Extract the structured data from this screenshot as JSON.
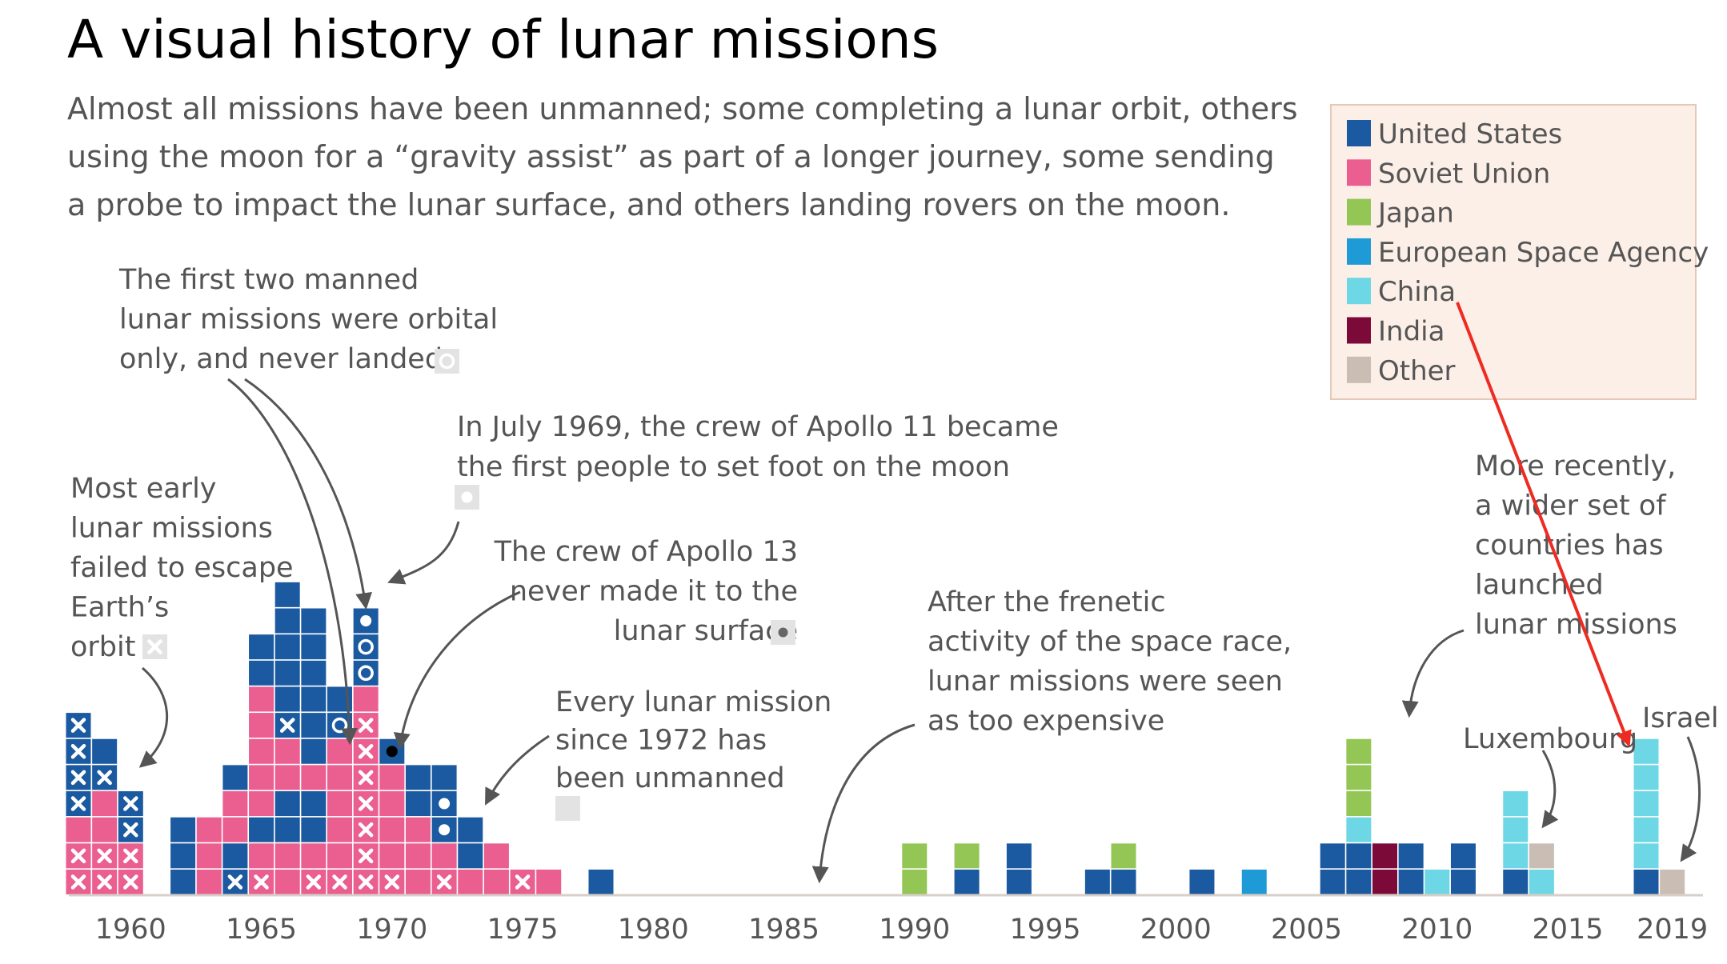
{
  "colors": {
    "United States": "#1b5aa0",
    "Soviet Union": "#ea5e90",
    "Japan": "#93c655",
    "European Space Agency": "#1e9ad7",
    "China": "#6dd7e5",
    "India": "#7c0a39",
    "Other": "#c9bdb4",
    "legend_bg": "#fcefe7",
    "axis": "#d8cfc8",
    "arrow": "#555555",
    "highlight": "#ee2b23"
  },
  "chart_data": {
    "type": "stacked-square-waffle",
    "title": "A visual history of lunar missions",
    "subtitle": [
      "Almost all missions have been unmanned; some completing a lunar orbit, others",
      "using the moon for a “gravity assist” as part of a longer journey, some sending",
      "a probe to impact the lunar surface, and others landing rovers on the moon."
    ],
    "x_ticks": [
      "1960",
      "1965",
      "1970",
      "1975",
      "1980",
      "1985",
      "1990",
      "1995",
      "2000",
      "2005",
      "2010",
      "2015",
      "2019"
    ],
    "legend": [
      "United States",
      "Soviet Union",
      "Japan",
      "European Space Agency",
      "China",
      "India",
      "Other"
    ],
    "columns": [
      {
        "year": 1958,
        "stack": [
          "Soviet Union:fail",
          "Soviet Union:fail",
          "Soviet Union",
          "United States:fail",
          "United States:fail",
          "United States:fail",
          "United States:fail"
        ]
      },
      {
        "year": 1959,
        "stack": [
          "Soviet Union:fail",
          "Soviet Union:fail",
          "Soviet Union",
          "Soviet Union",
          "United States:fail",
          "United States"
        ]
      },
      {
        "year": 1960,
        "stack": [
          "Soviet Union:fail",
          "Soviet Union:fail",
          "United States:fail",
          "United States:fail"
        ]
      },
      {
        "year": 1962,
        "stack": [
          "United States",
          "United States",
          "United States"
        ]
      },
      {
        "year": 1963,
        "stack": [
          "Soviet Union",
          "Soviet Union",
          "Soviet Union"
        ]
      },
      {
        "year": 1964,
        "stack": [
          "United States:fail",
          "United States",
          "Soviet Union",
          "Soviet Union",
          "United States"
        ]
      },
      {
        "year": 1965,
        "stack": [
          "Soviet Union:fail",
          "Soviet Union",
          "United States",
          "Soviet Union",
          "Soviet Union",
          "Soviet Union",
          "Soviet Union",
          "Soviet Union",
          "United States",
          "United States"
        ]
      },
      {
        "year": 1966,
        "stack": [
          "Soviet Union",
          "Soviet Union",
          "United States",
          "United States",
          "Soviet Union",
          "Soviet Union",
          "United States:fail",
          "United States",
          "United States",
          "United States",
          "United States",
          "United States"
        ]
      },
      {
        "year": 1967,
        "stack": [
          "Soviet Union:fail",
          "Soviet Union",
          "United States",
          "United States",
          "Soviet Union",
          "United States",
          "United States",
          "United States",
          "United States",
          "United States",
          "United States"
        ]
      },
      {
        "year": 1968,
        "stack": [
          "Soviet Union:fail",
          "Soviet Union",
          "Soviet Union",
          "Soviet Union",
          "Soviet Union",
          "Soviet Union",
          "United States:orbit",
          "United States"
        ]
      },
      {
        "year": 1969,
        "stack": [
          "Soviet Union:fail",
          "Soviet Union:fail",
          "Soviet Union:fail",
          "Soviet Union:fail",
          "Soviet Union:fail",
          "Soviet Union:fail",
          "Soviet Union:fail",
          "Soviet Union",
          "United States:orbit",
          "United States:orbit",
          "United States:landed"
        ]
      },
      {
        "year": 1970,
        "stack": [
          "Soviet Union:fail",
          "Soviet Union",
          "Soviet Union",
          "Soviet Union",
          "Soviet Union",
          "United States:returned"
        ]
      },
      {
        "year": 1971,
        "stack": [
          "Soviet Union",
          "Soviet Union",
          "Soviet Union",
          "United States",
          "United States"
        ]
      },
      {
        "year": 1972,
        "stack": [
          "Soviet Union:fail",
          "Soviet Union",
          "United States:landed",
          "United States:landed",
          "United States"
        ]
      },
      {
        "year": 1973,
        "stack": [
          "Soviet Union",
          "United States",
          "United States"
        ]
      },
      {
        "year": 1974,
        "stack": [
          "Soviet Union",
          "Soviet Union"
        ]
      },
      {
        "year": 1975,
        "stack": [
          "Soviet Union:fail"
        ]
      },
      {
        "year": 1976,
        "stack": [
          "Soviet Union"
        ]
      },
      {
        "year": 1978,
        "stack": [
          "United States"
        ]
      },
      {
        "year": 1990,
        "stack": [
          "Japan",
          "Japan"
        ]
      },
      {
        "year": 1992,
        "stack": [
          "United States",
          "Japan"
        ]
      },
      {
        "year": 1994,
        "stack": [
          "United States",
          "United States"
        ]
      },
      {
        "year": 1997,
        "stack": [
          "United States"
        ]
      },
      {
        "year": 1998,
        "stack": [
          "United States",
          "Japan"
        ]
      },
      {
        "year": 2001,
        "stack": [
          "United States"
        ]
      },
      {
        "year": 2003,
        "stack": [
          "European Space Agency"
        ]
      },
      {
        "year": 2006,
        "stack": [
          "United States",
          "United States"
        ]
      },
      {
        "year": 2007,
        "stack": [
          "United States",
          "United States",
          "China",
          "Japan",
          "Japan",
          "Japan"
        ]
      },
      {
        "year": 2008,
        "stack": [
          "India",
          "India"
        ]
      },
      {
        "year": 2009,
        "stack": [
          "United States",
          "United States"
        ]
      },
      {
        "year": 2010,
        "stack": [
          "China"
        ]
      },
      {
        "year": 2011,
        "stack": [
          "United States",
          "United States"
        ]
      },
      {
        "year": 2013,
        "stack": [
          "United States",
          "China",
          "China",
          "China"
        ]
      },
      {
        "year": 2014,
        "stack": [
          "China",
          "Other"
        ]
      },
      {
        "year": 2018,
        "stack": [
          "United States",
          "China",
          "China",
          "China",
          "China",
          "China"
        ]
      },
      {
        "year": 2019,
        "stack": [
          "Other"
        ]
      }
    ],
    "annotations": {
      "early": [
        "Most early",
        "lunar missions",
        "failed to escape",
        "Earth’s",
        "orbit"
      ],
      "manned": [
        "The first two manned",
        "lunar missions were orbital",
        "only, and never landed"
      ],
      "apollo11": [
        "In July 1969, the crew of Apollo 11 became",
        "the first people to set foot on the moon"
      ],
      "apollo13": [
        "The crew of Apollo 13",
        "never made it to the",
        "lunar surface"
      ],
      "unmanned": [
        "Every lunar mission",
        "since 1972 has",
        "been unmanned"
      ],
      "frenetic": [
        "After the frenetic",
        "activity of the space race,",
        "lunar missions were seen",
        "as too expensive"
      ],
      "recent": [
        "More recently,",
        "a wider set of",
        "countries has",
        "launched",
        "lunar missions"
      ],
      "luxembourg": "Luxembourg",
      "israel": "Israel"
    }
  }
}
